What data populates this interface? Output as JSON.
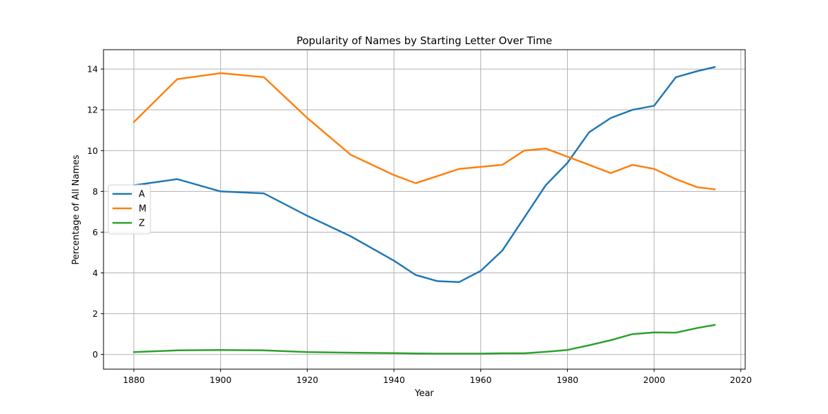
{
  "chart_data": {
    "type": "line",
    "title": "Popularity of Names by Starting Letter Over Time",
    "xlabel": "Year",
    "ylabel": "Percentage of All Names",
    "xlim": [
      1873,
      2021
    ],
    "ylim": [
      -0.72,
      14.95
    ],
    "xticks": [
      1880,
      1900,
      1920,
      1940,
      1960,
      1980,
      2000,
      2020
    ],
    "yticks": [
      0,
      2,
      4,
      6,
      8,
      10,
      12,
      14
    ],
    "grid": true,
    "legend_position": "center-left",
    "x": [
      1880,
      1890,
      1900,
      1910,
      1920,
      1930,
      1940,
      1945,
      1950,
      1955,
      1960,
      1965,
      1970,
      1975,
      1980,
      1985,
      1990,
      1995,
      2000,
      2005,
      2010,
      2014
    ],
    "series": [
      {
        "name": "A",
        "color": "#1f77b4",
        "values": [
          8.3,
          8.6,
          8.0,
          7.9,
          6.8,
          5.8,
          4.6,
          3.9,
          3.6,
          3.55,
          4.1,
          5.1,
          6.7,
          8.3,
          9.4,
          10.9,
          11.6,
          12.0,
          12.2,
          13.6,
          13.9,
          14.1
        ]
      },
      {
        "name": "M",
        "color": "#ff7f0e",
        "values": [
          11.4,
          13.5,
          13.8,
          13.6,
          11.6,
          9.8,
          8.8,
          8.4,
          8.75,
          9.1,
          9.2,
          9.3,
          10.0,
          10.1,
          9.7,
          9.3,
          8.9,
          9.3,
          9.1,
          8.6,
          8.2,
          8.1
        ]
      },
      {
        "name": "Z",
        "color": "#2ca02c",
        "values": [
          0.12,
          0.2,
          0.22,
          0.2,
          0.12,
          0.09,
          0.07,
          0.05,
          0.04,
          0.04,
          0.04,
          0.06,
          0.06,
          0.13,
          0.22,
          0.45,
          0.7,
          1.0,
          1.08,
          1.07,
          1.3,
          1.45
        ]
      }
    ]
  }
}
